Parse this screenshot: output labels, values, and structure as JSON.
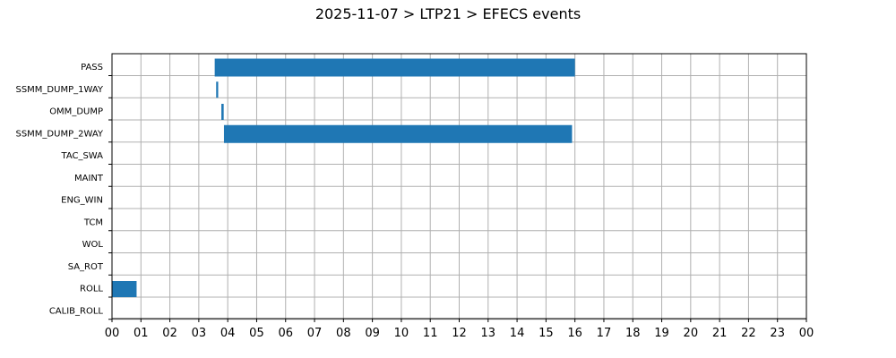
{
  "page": {
    "title": "2025-11-07 > LTP21 > EFECS events"
  },
  "chart_data": {
    "type": "bar",
    "orientation": "horizontal",
    "title": "2025-11-07 > LTP21 > EFECS events",
    "xlabel": "",
    "ylabel": "",
    "xlim": [
      0,
      24
    ],
    "x_unit": "hour",
    "x_tick_labels": [
      "00",
      "01",
      "02",
      "03",
      "04",
      "05",
      "06",
      "07",
      "08",
      "09",
      "10",
      "11",
      "12",
      "13",
      "14",
      "15",
      "16",
      "17",
      "18",
      "19",
      "20",
      "21",
      "22",
      "23",
      "00"
    ],
    "categories": [
      "PASS",
      "SSMM_DUMP_1WAY",
      "OMM_DUMP",
      "SSMM_DUMP_2WAY",
      "TAC_SWA",
      "MAINT",
      "ENG_WIN",
      "TCM",
      "WOL",
      "SA_ROT",
      "ROLL",
      "CALIB_ROLL"
    ],
    "events": [
      {
        "category": "PASS",
        "start": 3.55,
        "end": 16.0
      },
      {
        "category": "SSMM_DUMP_1WAY",
        "start": 3.6,
        "end": 3.67
      },
      {
        "category": "OMM_DUMP",
        "start": 3.78,
        "end": 3.86
      },
      {
        "category": "SSMM_DUMP_2WAY",
        "start": 3.87,
        "end": 15.9
      },
      {
        "category": "ROLL",
        "start": 0.0,
        "end": 0.85
      }
    ],
    "bar_color": "#1f77b4",
    "grid": true,
    "legend": "none"
  }
}
